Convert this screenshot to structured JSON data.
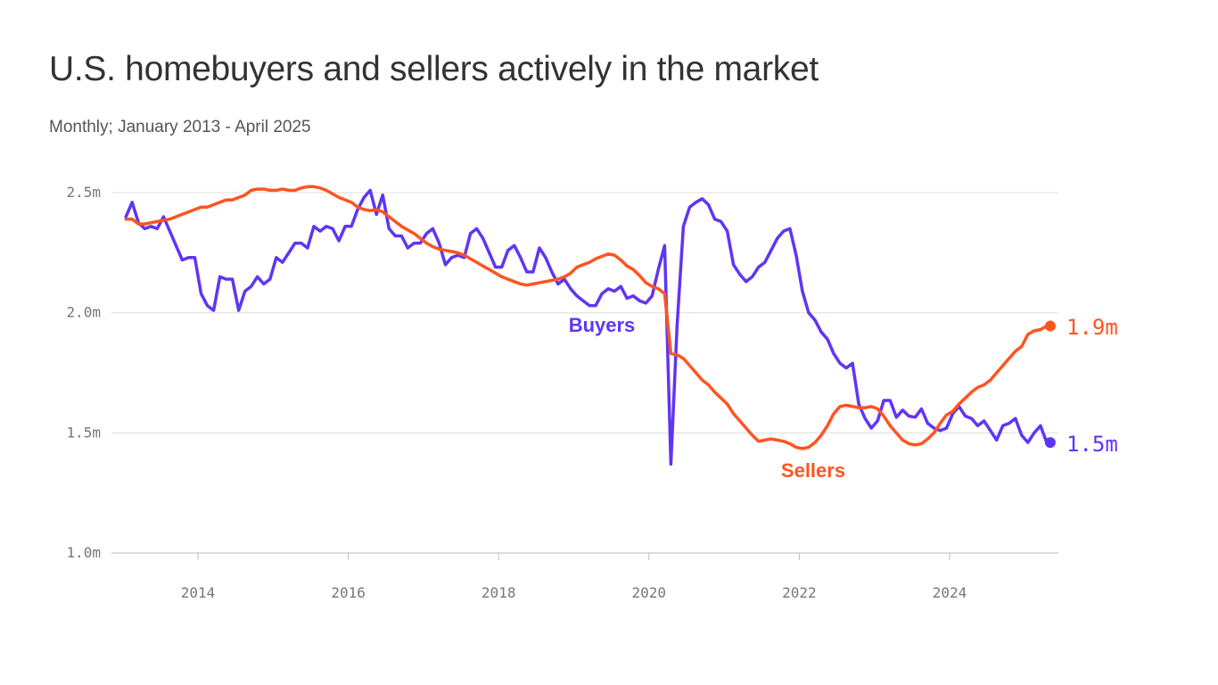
{
  "chart_data": {
    "type": "line",
    "title": "U.S. homebuyers and sellers actively in the market",
    "subtitle": "Monthly; January 2013 - April 2025",
    "x_range": [
      "2013-01",
      "2025-04"
    ],
    "frequency": "monthly",
    "x_ticks": [
      "2014",
      "2016",
      "2018",
      "2020",
      "2022",
      "2024"
    ],
    "y_ticks": [
      "1.0m",
      "1.5m",
      "2.0m",
      "2.5m"
    ],
    "ylim": [
      1.0,
      2.5
    ],
    "y_unit": "millions",
    "grid": "horizontal",
    "series": [
      {
        "name": "Buyers",
        "color": "#5f35f5",
        "end_label": "1.5m",
        "values": [
          2.4,
          2.46,
          2.375,
          2.35,
          2.36,
          2.35,
          2.4,
          2.34,
          2.28,
          2.22,
          2.23,
          2.23,
          2.08,
          2.03,
          2.01,
          2.15,
          2.14,
          2.14,
          2.01,
          2.09,
          2.11,
          2.15,
          2.12,
          2.14,
          2.23,
          2.21,
          2.25,
          2.29,
          2.29,
          2.27,
          2.36,
          2.34,
          2.36,
          2.35,
          2.3,
          2.36,
          2.36,
          2.43,
          2.48,
          2.51,
          2.41,
          2.49,
          2.35,
          2.32,
          2.32,
          2.27,
          2.29,
          2.29,
          2.33,
          2.35,
          2.29,
          2.2,
          2.23,
          2.24,
          2.23,
          2.33,
          2.35,
          2.31,
          2.25,
          2.19,
          2.19,
          2.26,
          2.28,
          2.23,
          2.17,
          2.17,
          2.27,
          2.23,
          2.17,
          2.12,
          2.14,
          2.1,
          2.07,
          2.05,
          2.03,
          2.03,
          2.08,
          2.1,
          2.09,
          2.11,
          2.06,
          2.07,
          2.05,
          2.04,
          2.07,
          2.18,
          2.28,
          1.37,
          1.95,
          2.36,
          2.44,
          2.46,
          2.475,
          2.45,
          2.39,
          2.38,
          2.34,
          2.2,
          2.16,
          2.13,
          2.15,
          2.19,
          2.21,
          2.26,
          2.31,
          2.34,
          2.35,
          2.24,
          2.09,
          2.0,
          1.97,
          1.92,
          1.89,
          1.83,
          1.79,
          1.77,
          1.79,
          1.62,
          1.56,
          1.52,
          1.55,
          1.635,
          1.635,
          1.565,
          1.595,
          1.57,
          1.565,
          1.6,
          1.54,
          1.52,
          1.51,
          1.52,
          1.58,
          1.61,
          1.57,
          1.56,
          1.53,
          1.55,
          1.51,
          1.47,
          1.53,
          1.54,
          1.56,
          1.49,
          1.46,
          1.5,
          1.53,
          1.46
        ]
      },
      {
        "name": "Sellers",
        "color": "#ff5420",
        "end_label": "1.9m",
        "values": [
          2.39,
          2.39,
          2.37,
          2.37,
          2.375,
          2.38,
          2.385,
          2.39,
          2.4,
          2.41,
          2.42,
          2.43,
          2.44,
          2.44,
          2.45,
          2.46,
          2.47,
          2.47,
          2.48,
          2.49,
          2.51,
          2.515,
          2.515,
          2.51,
          2.51,
          2.515,
          2.51,
          2.51,
          2.52,
          2.525,
          2.525,
          2.52,
          2.51,
          2.495,
          2.48,
          2.47,
          2.46,
          2.44,
          2.43,
          2.425,
          2.43,
          2.42,
          2.4,
          2.38,
          2.36,
          2.345,
          2.33,
          2.31,
          2.29,
          2.275,
          2.265,
          2.26,
          2.255,
          2.25,
          2.24,
          2.225,
          2.21,
          2.195,
          2.18,
          2.165,
          2.15,
          2.14,
          2.13,
          2.12,
          2.115,
          2.12,
          2.125,
          2.13,
          2.135,
          2.14,
          2.15,
          2.165,
          2.19,
          2.2,
          2.21,
          2.225,
          2.235,
          2.245,
          2.24,
          2.22,
          2.195,
          2.18,
          2.155,
          2.125,
          2.11,
          2.1,
          2.08,
          1.83,
          1.825,
          1.81,
          1.78,
          1.75,
          1.72,
          1.7,
          1.67,
          1.645,
          1.62,
          1.58,
          1.55,
          1.52,
          1.49,
          1.465,
          1.47,
          1.475,
          1.47,
          1.465,
          1.455,
          1.44,
          1.435,
          1.44,
          1.46,
          1.49,
          1.53,
          1.58,
          1.61,
          1.615,
          1.61,
          1.605,
          1.605,
          1.61,
          1.6,
          1.57,
          1.53,
          1.5,
          1.47,
          1.455,
          1.45,
          1.455,
          1.475,
          1.5,
          1.54,
          1.575,
          1.59,
          1.62,
          1.645,
          1.67,
          1.69,
          1.7,
          1.72,
          1.75,
          1.78,
          1.81,
          1.84,
          1.86,
          1.91,
          1.925,
          1.93,
          1.945
        ]
      }
    ]
  }
}
